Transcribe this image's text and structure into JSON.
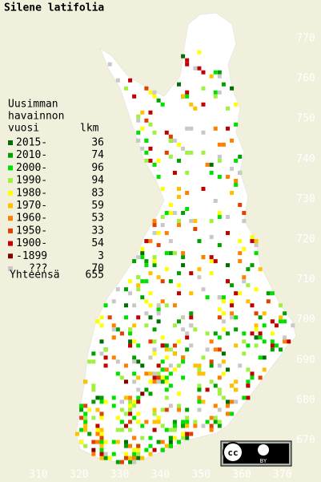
{
  "title": "Silene latifolia",
  "legend": {
    "heading": [
      "Uusimman",
      "havainnon",
      "vuosi"
    ],
    "count_header": "lkm",
    "items": [
      {
        "label": "2015-",
        "count": 36,
        "color": "#006e00"
      },
      {
        "label": "2010-",
        "count": 74,
        "color": "#00a000"
      },
      {
        "label": "2000-",
        "count": 96,
        "color": "#00e000"
      },
      {
        "label": "1990-",
        "count": 94,
        "color": "#a0f040"
      },
      {
        "label": "1980-",
        "count": 83,
        "color": "#ffff00"
      },
      {
        "label": "1970-",
        "count": 59,
        "color": "#ffc000"
      },
      {
        "label": "1960-",
        "count": 53,
        "color": "#ff8000"
      },
      {
        "label": "1950-",
        "count": 33,
        "color": "#e04000"
      },
      {
        "label": "1900-",
        "count": 54,
        "color": "#c00000"
      },
      {
        "label": "-1899",
        "count": 3,
        "color": "#800000"
      },
      {
        "label": "???",
        "count": 70,
        "color": "#c8c8c8"
      }
    ],
    "total_label": "Yhteensä",
    "total": 655
  },
  "map": {
    "xticks": [
      310,
      320,
      330,
      340,
      350,
      360,
      370
    ],
    "yticks": [
      670,
      680,
      690,
      700,
      710,
      720,
      730,
      740,
      750,
      760,
      770
    ]
  },
  "license": {
    "icon": "cc",
    "label": "BY"
  }
}
